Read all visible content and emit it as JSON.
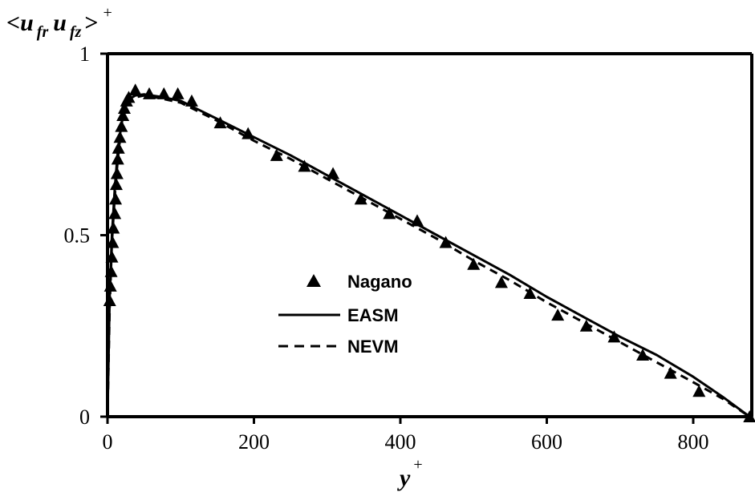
{
  "chart_data": {
    "type": "line",
    "title": "",
    "xlabel": {
      "main": "y",
      "sup": "+"
    },
    "ylabel": {
      "open": "<",
      "u1": "u",
      "sub1": "fr",
      "u2": "u",
      "sub2": "fz",
      "close": ">",
      "sup": "+"
    },
    "xlim": [
      0,
      880
    ],
    "ylim": [
      0,
      1
    ],
    "x_ticks": [
      {
        "value": 0,
        "label": "0"
      },
      {
        "value": 200,
        "label": "200"
      },
      {
        "value": 400,
        "label": "400"
      },
      {
        "value": 600,
        "label": "600"
      },
      {
        "value": 800,
        "label": "800"
      }
    ],
    "y_ticks": [
      {
        "value": 0,
        "label": "0"
      },
      {
        "value": 0.5,
        "label": "0.5"
      },
      {
        "value": 1,
        "label": "1"
      }
    ],
    "grid": false,
    "legend_position": "center",
    "series": [
      {
        "name": "Nagano",
        "style": "triangle-markers",
        "color": "#000000",
        "points": [
          [
            3,
            0.32
          ],
          [
            4,
            0.36
          ],
          [
            5,
            0.4
          ],
          [
            6,
            0.44
          ],
          [
            7,
            0.48
          ],
          [
            8,
            0.52
          ],
          [
            10,
            0.56
          ],
          [
            11,
            0.6
          ],
          [
            12,
            0.64
          ],
          [
            13,
            0.67
          ],
          [
            14,
            0.71
          ],
          [
            15,
            0.74
          ],
          [
            17,
            0.77
          ],
          [
            19,
            0.8
          ],
          [
            21,
            0.83
          ],
          [
            23,
            0.85
          ],
          [
            26,
            0.87
          ],
          [
            29,
            0.88
          ],
          [
            38,
            0.9
          ],
          [
            57,
            0.89
          ],
          [
            77,
            0.89
          ],
          [
            96,
            0.89
          ],
          [
            115,
            0.87
          ],
          [
            154,
            0.81
          ],
          [
            192,
            0.78
          ],
          [
            231,
            0.72
          ],
          [
            269,
            0.69
          ],
          [
            308,
            0.67
          ],
          [
            346,
            0.6
          ],
          [
            385,
            0.56
          ],
          [
            423,
            0.54
          ],
          [
            462,
            0.48
          ],
          [
            500,
            0.42
          ],
          [
            538,
            0.37
          ],
          [
            577,
            0.34
          ],
          [
            615,
            0.28
          ],
          [
            654,
            0.25
          ],
          [
            692,
            0.22
          ],
          [
            731,
            0.17
          ],
          [
            769,
            0.12
          ],
          [
            808,
            0.07
          ],
          [
            877,
            0.0
          ]
        ]
      },
      {
        "name": "EASM",
        "style": "solid",
        "color": "#000000",
        "points": [
          [
            0,
            0.0
          ],
          [
            3,
            0.33
          ],
          [
            6,
            0.5
          ],
          [
            10,
            0.63
          ],
          [
            14,
            0.73
          ],
          [
            18,
            0.79
          ],
          [
            22,
            0.84
          ],
          [
            26,
            0.86
          ],
          [
            30,
            0.875
          ],
          [
            38,
            0.885
          ],
          [
            50,
            0.888
          ],
          [
            70,
            0.882
          ],
          [
            100,
            0.87
          ],
          [
            150,
            0.82
          ],
          [
            200,
            0.77
          ],
          [
            250,
            0.72
          ],
          [
            300,
            0.665
          ],
          [
            350,
            0.61
          ],
          [
            400,
            0.555
          ],
          [
            450,
            0.5
          ],
          [
            500,
            0.445
          ],
          [
            550,
            0.39
          ],
          [
            600,
            0.33
          ],
          [
            650,
            0.275
          ],
          [
            700,
            0.22
          ],
          [
            750,
            0.17
          ],
          [
            800,
            0.11
          ],
          [
            840,
            0.055
          ],
          [
            877,
            0.0
          ]
        ]
      },
      {
        "name": "NEVM",
        "style": "dashed",
        "color": "#000000",
        "points": [
          [
            0,
            0.0
          ],
          [
            3,
            0.3
          ],
          [
            6,
            0.48
          ],
          [
            10,
            0.61
          ],
          [
            14,
            0.71
          ],
          [
            18,
            0.78
          ],
          [
            22,
            0.83
          ],
          [
            26,
            0.855
          ],
          [
            30,
            0.87
          ],
          [
            38,
            0.88
          ],
          [
            50,
            0.885
          ],
          [
            70,
            0.878
          ],
          [
            100,
            0.865
          ],
          [
            150,
            0.815
          ],
          [
            200,
            0.76
          ],
          [
            250,
            0.71
          ],
          [
            300,
            0.655
          ],
          [
            350,
            0.6
          ],
          [
            400,
            0.545
          ],
          [
            450,
            0.49
          ],
          [
            500,
            0.43
          ],
          [
            550,
            0.375
          ],
          [
            600,
            0.315
          ],
          [
            650,
            0.26
          ],
          [
            700,
            0.205
          ],
          [
            750,
            0.15
          ],
          [
            800,
            0.095
          ],
          [
            840,
            0.05
          ],
          [
            877,
            0.0
          ]
        ]
      }
    ]
  }
}
